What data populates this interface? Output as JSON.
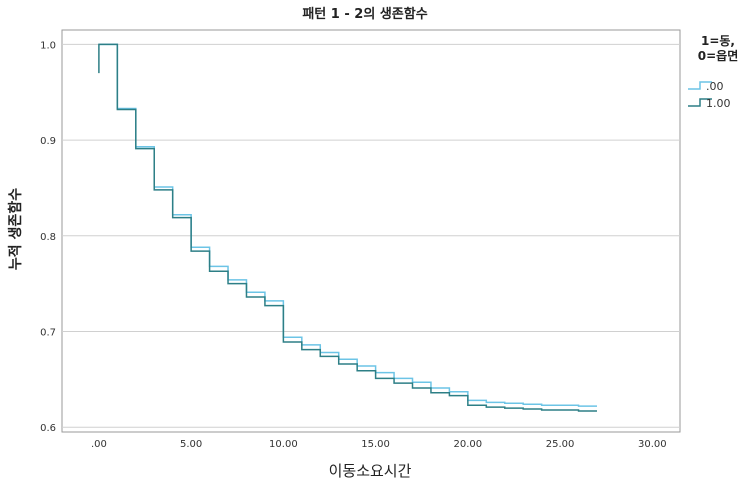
{
  "chart_data": {
    "type": "line",
    "step": true,
    "title": "패턴 1 - 2의 생존함수",
    "xlabel": "이동소요시간",
    "ylabel": "누적 생존함수",
    "xlim": [
      -2,
      31.5
    ],
    "ylim": [
      0.595,
      1.015
    ],
    "xticks": [
      {
        "value": 0,
        "label": ".00"
      },
      {
        "value": 5,
        "label": "5.00"
      },
      {
        "value": 10,
        "label": "10.00"
      },
      {
        "value": 15,
        "label": "15.00"
      },
      {
        "value": 20,
        "label": "20.00"
      },
      {
        "value": 25,
        "label": "25.00"
      },
      {
        "value": 30,
        "label": "30.00"
      }
    ],
    "yticks": [
      {
        "value": 0.6,
        "label": "0.6"
      },
      {
        "value": 0.7,
        "label": "0.7"
      },
      {
        "value": 0.8,
        "label": "0.8"
      },
      {
        "value": 0.9,
        "label": "0.9"
      },
      {
        "value": 1.0,
        "label": "1.0"
      }
    ],
    "grid_y": true,
    "legend": {
      "title_lines": [
        "1=동,",
        "0=읍면"
      ],
      "position": "right"
    },
    "series": [
      {
        "name": ".00",
        "color": "#6cc4e6",
        "x": [
          0,
          1,
          2,
          3,
          4,
          5,
          6,
          7,
          8,
          9,
          10,
          11,
          12,
          13,
          14,
          15,
          16,
          17,
          18,
          19,
          20,
          21,
          22,
          23,
          24,
          25,
          26,
          27
        ],
        "y": [
          1.0,
          0.933,
          0.893,
          0.851,
          0.822,
          0.788,
          0.768,
          0.754,
          0.741,
          0.732,
          0.694,
          0.686,
          0.678,
          0.671,
          0.664,
          0.657,
          0.651,
          0.647,
          0.641,
          0.637,
          0.628,
          0.626,
          0.625,
          0.624,
          0.623,
          0.623,
          0.622,
          0.622
        ]
      },
      {
        "name": "1.00",
        "color": "#2d7f86",
        "x": [
          0,
          1,
          2,
          3,
          4,
          5,
          6,
          7,
          8,
          9,
          10,
          11,
          12,
          13,
          14,
          15,
          16,
          17,
          18,
          19,
          20,
          21,
          22,
          23,
          24,
          25,
          26,
          27
        ],
        "y": [
          0.97,
          0.932,
          0.891,
          0.848,
          0.819,
          0.784,
          0.763,
          0.75,
          0.736,
          0.727,
          0.689,
          0.681,
          0.674,
          0.666,
          0.659,
          0.651,
          0.646,
          0.641,
          0.636,
          0.633,
          0.623,
          0.621,
          0.62,
          0.619,
          0.618,
          0.618,
          0.617,
          0.617
        ]
      }
    ]
  }
}
